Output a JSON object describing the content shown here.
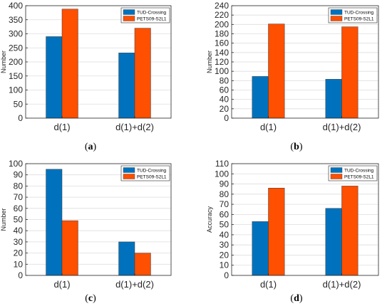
{
  "chart_data": [
    {
      "type": "bar",
      "caption": "(a)",
      "categories": [
        "d(1)",
        "d(1)+d(2)"
      ],
      "series": [
        {
          "name": "TUD-Crossing",
          "values": [
            290,
            232
          ]
        },
        {
          "name": "PETS09-S2L1",
          "values": [
            388,
            320
          ]
        }
      ],
      "ylabel": "Number",
      "ylim": [
        0,
        400
      ],
      "yticks": [
        0,
        50,
        100,
        150,
        200,
        250,
        300,
        350,
        400
      ],
      "grid": true,
      "legend": "top-right"
    },
    {
      "type": "bar",
      "caption": "(b)",
      "categories": [
        "d(1)",
        "d(1)+d(2)"
      ],
      "series": [
        {
          "name": "TUD-Crossing",
          "values": [
            89,
            83
          ]
        },
        {
          "name": "PETS09-S2L1",
          "values": [
            201,
            195
          ]
        }
      ],
      "ylabel": "Number",
      "ylim": [
        0,
        240
      ],
      "yticks": [
        0,
        20,
        40,
        60,
        80,
        100,
        120,
        140,
        160,
        180,
        200,
        220,
        240
      ],
      "grid": true,
      "legend": "top-right"
    },
    {
      "type": "bar",
      "caption": "(c)",
      "categories": [
        "d(1)",
        "d(1)+d(2)"
      ],
      "series": [
        {
          "name": "TUD-Crossing",
          "values": [
            95,
            30
          ]
        },
        {
          "name": "PETS09-S2L1",
          "values": [
            49,
            20
          ]
        }
      ],
      "ylabel": "Number",
      "ylim": [
        0,
        100
      ],
      "yticks": [
        0,
        10,
        20,
        30,
        40,
        50,
        60,
        70,
        80,
        90,
        100
      ],
      "grid": true,
      "legend": "top-right"
    },
    {
      "type": "bar",
      "caption": "(d)",
      "categories": [
        "d(1)",
        "d(1)+d(2)"
      ],
      "series": [
        {
          "name": "TUD-Crossing",
          "values": [
            53,
            66
          ]
        },
        {
          "name": "PETS09-S2L1",
          "values": [
            86,
            88
          ]
        }
      ],
      "ylabel": "Accuracy",
      "ylim": [
        0,
        110
      ],
      "yticks": [
        0,
        10,
        20,
        30,
        40,
        50,
        60,
        70,
        80,
        90,
        100,
        110
      ],
      "grid": true,
      "legend": "top-right"
    }
  ],
  "colors": {
    "series": [
      "#0072bd",
      "#ff4f00"
    ],
    "bar_edge": "#3a3a3a"
  }
}
